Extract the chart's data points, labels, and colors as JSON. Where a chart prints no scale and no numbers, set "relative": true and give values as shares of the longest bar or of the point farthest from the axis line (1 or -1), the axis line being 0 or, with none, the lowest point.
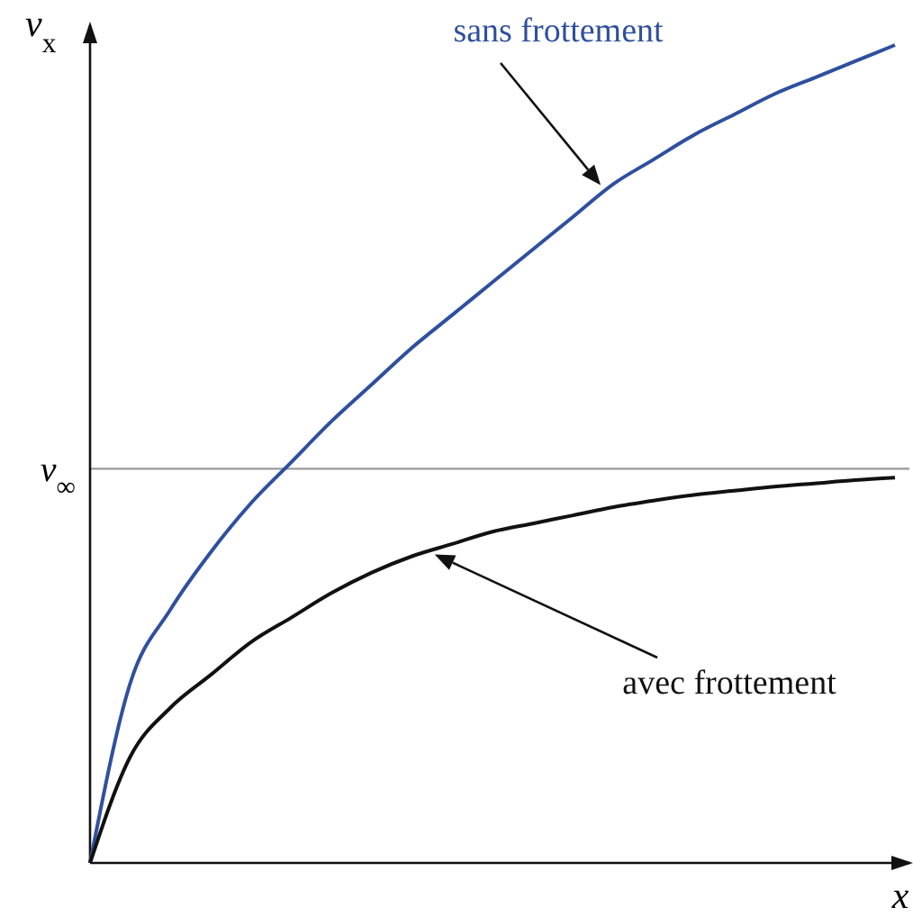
{
  "chart_data": {
    "type": "line",
    "relative": true,
    "xlabel": "x",
    "ylabel": "v$_{x}$",
    "marker": "none",
    "line_style": "solid",
    "categories": [
      null,
      null,
      null,
      null,
      null,
      null,
      null,
      null,
      null,
      null,
      null,
      null,
      null,
      null,
      null,
      null,
      null,
      null,
      null,
      null,
      null
    ],
    "series": [
      {
        "name": "sans frottement",
        "color": "#2f4f9f",
        "values": [
          0,
          0.22,
          0.31,
          0.38,
          0.44,
          0.49,
          0.54,
          0.585,
          0.63,
          0.67,
          0.71,
          0.75,
          0.79,
          0.83,
          0.86,
          0.89,
          0.915,
          0.94,
          0.96,
          0.98,
          1
        ]
      },
      {
        "name": "avec frottement",
        "color": "#111111",
        "values": [
          0,
          0.13,
          0.19,
          0.23,
          0.27,
          0.3,
          0.33,
          0.355,
          0.375,
          0.39,
          0.405,
          0.415,
          0.425,
          0.435,
          0.443,
          0.45,
          0.455,
          0.46,
          0.464,
          0.468,
          0.471
        ]
      }
    ],
    "ref_lines": [
      {
        "axis": "y",
        "value": 0.482,
        "label": "v$_{∞}$",
        "color": "#999999"
      }
    ]
  }
}
